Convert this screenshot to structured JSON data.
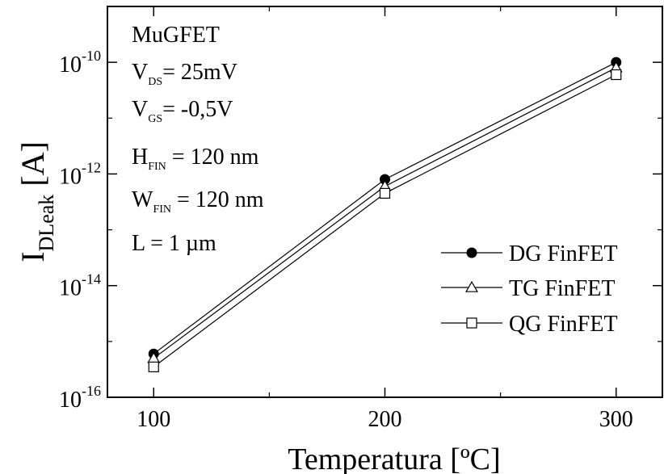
{
  "chart_data": {
    "type": "line",
    "x": [
      100,
      200,
      300
    ],
    "xlim": [
      80,
      320
    ],
    "ylim_log10": [
      -16,
      -9
    ],
    "y_scale": "log",
    "grid": false,
    "legend_position": "right",
    "xlabel": "Temperatura [ºC]",
    "ylabel": {
      "main": "I",
      "sub": "DLeak",
      "unit": " [A]"
    },
    "x_ticks": [
      100,
      200,
      300
    ],
    "y_ticks": [
      {
        "base": "10",
        "exp": "-10",
        "log10": -10
      },
      {
        "base": "10",
        "exp": "-12",
        "log10": -12
      },
      {
        "base": "10",
        "exp": "-14",
        "log10": -14
      },
      {
        "base": "10",
        "exp": "-16",
        "log10": -16
      }
    ],
    "series": [
      {
        "name": "DG FinFET",
        "marker": "filled-circle",
        "values": [
          6e-16,
          8e-13,
          1e-10
        ]
      },
      {
        "name": "TG FinFET",
        "marker": "open-triangle",
        "values": [
          5e-16,
          6e-13,
          8e-11
        ]
      },
      {
        "name": "QG FinFET",
        "marker": "open-square",
        "values": [
          3.5e-16,
          4.5e-13,
          6e-11
        ]
      }
    ],
    "annotations": [
      {
        "key": "device",
        "text": "MuGFET"
      },
      {
        "key": "vds",
        "main": "V",
        "sub": "DS",
        "rest": "= 25mV"
      },
      {
        "key": "vgs",
        "main": "V",
        "sub": "GS",
        "rest": "= -0,5V"
      },
      {
        "key": "hfin",
        "main": "H",
        "sub": "FIN",
        "rest": " = 120 nm"
      },
      {
        "key": "wfin",
        "main": "W",
        "sub": "FIN",
        "rest": " = 120 nm"
      },
      {
        "key": "length",
        "text": "L = 1 µm"
      }
    ]
  }
}
